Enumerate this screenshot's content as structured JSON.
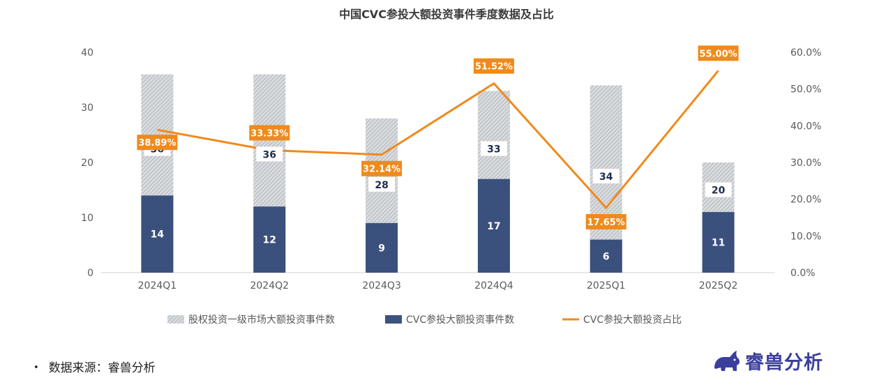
{
  "chart_data": {
    "type": "bar",
    "title": "中国CVC参投大额投资事件季度数据及占比",
    "categories": [
      "2024Q1",
      "2024Q2",
      "2024Q3",
      "2024Q4",
      "2025Q1",
      "2025Q2"
    ],
    "series": [
      {
        "name": "股权投资一级市场大额投资事件数",
        "type": "bar",
        "values": [
          36,
          36,
          28,
          33,
          34,
          20
        ],
        "color": "#c8ccd1"
      },
      {
        "name": "CVC参投大额投资事件数",
        "type": "bar",
        "values": [
          14,
          12,
          9,
          17,
          6,
          11
        ],
        "color": "#3c5280"
      },
      {
        "name": "CVC参投大额投资占比",
        "type": "line",
        "axis": "right",
        "values": [
          38.89,
          33.33,
          32.14,
          51.52,
          17.65,
          55.0
        ],
        "color": "#ef8a1c"
      }
    ],
    "total_labels": [
      "36",
      "36",
      "28",
      "33",
      "34",
      "20"
    ],
    "cvc_labels": [
      "14",
      "12",
      "9",
      "17",
      "6",
      "11"
    ],
    "ratio_labels": [
      "38.89%",
      "33.33%",
      "32.14%",
      "51.52%",
      "17.65%",
      "55.00%"
    ],
    "ylim": [
      0,
      40
    ],
    "y_ticks": [
      "0",
      "10",
      "20",
      "30",
      "40"
    ],
    "y2lim": [
      0,
      60
    ],
    "y2_ticks": [
      "0.0%",
      "10.0%",
      "20.0%",
      "30.0%",
      "40.0%",
      "50.0%",
      "60.0%"
    ],
    "legend_placement": "bottom",
    "grid": false
  },
  "footer": {
    "bullet": "•",
    "source": "数据来源：睿兽分析"
  },
  "brand": {
    "name": "睿兽分析",
    "icon": "rhino-logo-icon",
    "color": "#3b3f9c"
  }
}
